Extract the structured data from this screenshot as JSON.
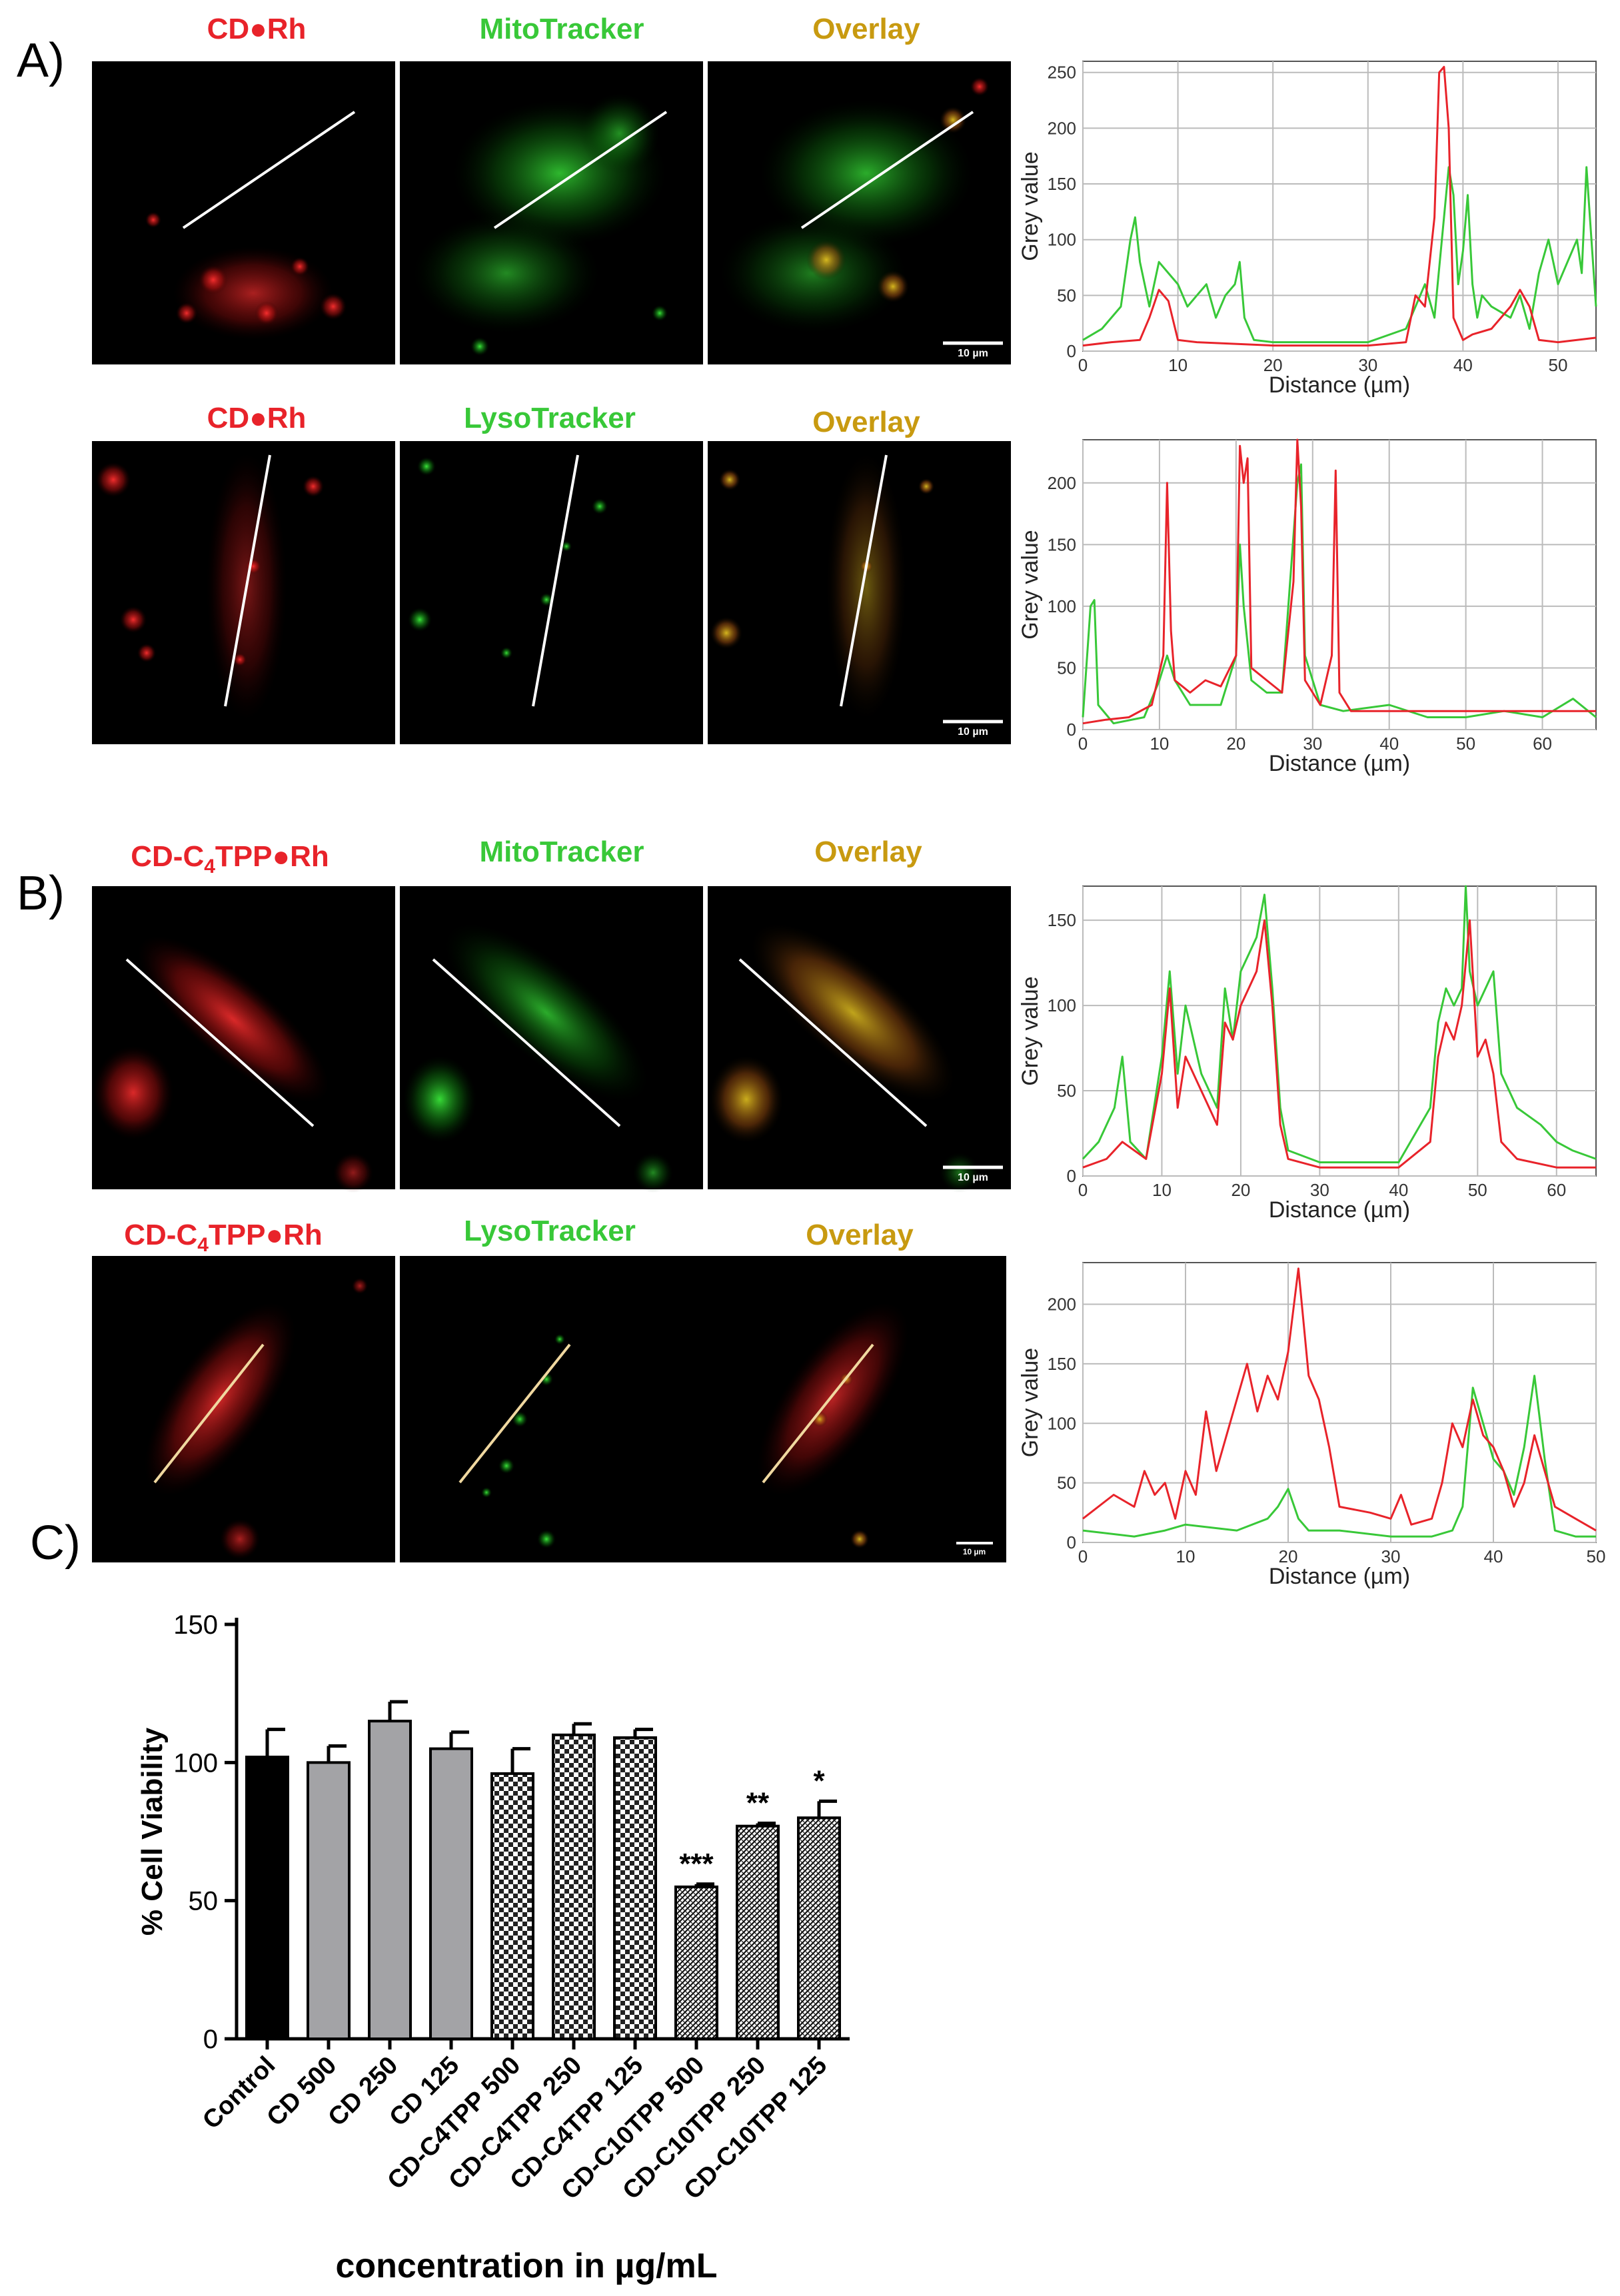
{
  "colors": {
    "red": "#e8232a",
    "green": "#38c838",
    "gold": "#c89a10",
    "black": "#000000"
  },
  "panel_labels": [
    "A)",
    "B)",
    "C)"
  ],
  "rows": [
    {
      "headers": [
        "CD●Rh",
        "MitoTracker",
        "Overlay"
      ],
      "scale_bar": "10 µm"
    },
    {
      "headers": [
        "CD●Rh",
        "LysoTracker",
        "Overlay"
      ],
      "scale_bar": "10 µm"
    },
    {
      "headers": [
        "CD-C4TPP●Rh",
        "MitoTracker",
        "Overlay"
      ],
      "scale_bar": "10 µm"
    },
    {
      "headers": [
        "CD-C4TPP●Rh",
        "LysoTracker",
        "Overlay"
      ],
      "scale_bar": "10 µm"
    }
  ],
  "chart_data": [
    {
      "type": "line",
      "title": "",
      "xlabel": "Distance (µm)",
      "ylabel": "Grey value",
      "xlim": [
        0,
        54
      ],
      "ylim": [
        0,
        260
      ],
      "grid": true,
      "xticks": [
        0,
        10,
        20,
        30,
        40,
        50
      ],
      "yticks": [
        0,
        50,
        100,
        150,
        200,
        250
      ],
      "series": [
        {
          "name": "red",
          "x": [
            0,
            3,
            6,
            7,
            8,
            9,
            10,
            12,
            20,
            30,
            34,
            35,
            36,
            37,
            37.5,
            38,
            38.5,
            39,
            40,
            41,
            43,
            45,
            46,
            47,
            48,
            50,
            52,
            54
          ],
          "y": [
            5,
            8,
            10,
            30,
            55,
            45,
            10,
            8,
            5,
            5,
            8,
            50,
            40,
            120,
            250,
            255,
            200,
            30,
            10,
            15,
            20,
            40,
            55,
            40,
            10,
            8,
            10,
            12
          ]
        },
        {
          "name": "green",
          "x": [
            0,
            2,
            4,
            5,
            5.5,
            6,
            7,
            8,
            9,
            10,
            11,
            12,
            13,
            14,
            15,
            16,
            16.5,
            17,
            18,
            20,
            25,
            30,
            34,
            35,
            36,
            37,
            38,
            38.5,
            39,
            39.5,
            40,
            40.5,
            41,
            41.5,
            42,
            43,
            45,
            46,
            47,
            48,
            49,
            50,
            51,
            52,
            52.5,
            53,
            54
          ],
          "y": [
            10,
            20,
            40,
            100,
            120,
            80,
            40,
            80,
            70,
            60,
            40,
            50,
            60,
            30,
            50,
            60,
            80,
            30,
            10,
            8,
            8,
            8,
            20,
            40,
            60,
            30,
            120,
            165,
            140,
            60,
            90,
            140,
            60,
            30,
            50,
            40,
            30,
            50,
            20,
            70,
            100,
            60,
            80,
            100,
            70,
            165,
            40
          ]
        }
      ]
    },
    {
      "type": "line",
      "title": "",
      "xlabel": "Distance (µm)",
      "ylabel": "Grey value",
      "xlim": [
        0,
        67
      ],
      "ylim": [
        0,
        235
      ],
      "grid": true,
      "xticks": [
        0,
        10,
        20,
        30,
        40,
        50,
        60
      ],
      "yticks": [
        0,
        50,
        100,
        150,
        200
      ],
      "series": [
        {
          "name": "red",
          "x": [
            0,
            3,
            6,
            9,
            10.5,
            11,
            11.5,
            12,
            14,
            16,
            18,
            20,
            20.5,
            21,
            21.5,
            22,
            24,
            26,
            27.5,
            28,
            28.5,
            29,
            31,
            32.5,
            33,
            33.5,
            35,
            40,
            50,
            60,
            67
          ],
          "y": [
            5,
            8,
            10,
            20,
            60,
            200,
            80,
            40,
            30,
            40,
            35,
            60,
            230,
            200,
            220,
            50,
            40,
            30,
            120,
            235,
            180,
            40,
            20,
            60,
            210,
            30,
            15,
            15,
            15,
            15,
            15
          ]
        },
        {
          "name": "green",
          "x": [
            0,
            1,
            1.5,
            2,
            4,
            8,
            10,
            11,
            12,
            14,
            18,
            20,
            20.5,
            21,
            22,
            24,
            26,
            28,
            28.5,
            29,
            31,
            34,
            40,
            45,
            50,
            55,
            60,
            64,
            67
          ],
          "y": [
            10,
            100,
            105,
            20,
            5,
            10,
            40,
            60,
            40,
            20,
            20,
            60,
            150,
            100,
            40,
            30,
            30,
            200,
            215,
            60,
            20,
            15,
            20,
            10,
            10,
            15,
            10,
            25,
            10
          ]
        }
      ]
    },
    {
      "type": "line",
      "title": "",
      "xlabel": "Distance (µm)",
      "ylabel": "Grey value",
      "xlim": [
        0,
        65
      ],
      "ylim": [
        0,
        170
      ],
      "grid": true,
      "xticks": [
        0,
        10,
        20,
        30,
        40,
        50,
        60
      ],
      "yticks": [
        0,
        50,
        100,
        150
      ],
      "series": [
        {
          "name": "red",
          "x": [
            0,
            3,
            5,
            8,
            10,
            11,
            12,
            13,
            15,
            17,
            18,
            19,
            20,
            21,
            22,
            23,
            24,
            25,
            26,
            30,
            40,
            44,
            45,
            46,
            47,
            48,
            49,
            50,
            51,
            52,
            53,
            55,
            60,
            65
          ],
          "y": [
            5,
            10,
            20,
            10,
            60,
            110,
            40,
            70,
            50,
            30,
            90,
            80,
            100,
            110,
            120,
            150,
            100,
            30,
            10,
            5,
            5,
            20,
            70,
            90,
            80,
            100,
            150,
            70,
            80,
            60,
            20,
            10,
            5,
            5
          ]
        },
        {
          "name": "green",
          "x": [
            0,
            2,
            4,
            5,
            6,
            8,
            10,
            11,
            12,
            13,
            15,
            17,
            18,
            19,
            20,
            21,
            22,
            23,
            24,
            25,
            26,
            30,
            40,
            44,
            45,
            46,
            47,
            48,
            48.5,
            49,
            50,
            51,
            52,
            53,
            55,
            58,
            60,
            62,
            65
          ],
          "y": [
            10,
            20,
            40,
            70,
            20,
            10,
            70,
            120,
            60,
            100,
            60,
            40,
            110,
            80,
            120,
            130,
            140,
            165,
            110,
            40,
            15,
            8,
            8,
            40,
            90,
            110,
            100,
            110,
            170,
            120,
            100,
            110,
            120,
            60,
            40,
            30,
            20,
            15,
            10
          ]
        }
      ]
    },
    {
      "type": "line",
      "title": "",
      "xlabel": "Distance (µm)",
      "ylabel": "Grey value",
      "xlim": [
        0,
        50
      ],
      "ylim": [
        0,
        235
      ],
      "grid": true,
      "xticks": [
        0,
        10,
        20,
        30,
        40,
        50
      ],
      "yticks": [
        0,
        50,
        100,
        150,
        200
      ],
      "series": [
        {
          "name": "red",
          "x": [
            0,
            3,
            5,
            6,
            7,
            8,
            9,
            10,
            11,
            12,
            13,
            14,
            15,
            16,
            17,
            18,
            19,
            20,
            21,
            22,
            23,
            24,
            25,
            28,
            30,
            31,
            32,
            34,
            35,
            36,
            37,
            38,
            39,
            40,
            41,
            42,
            43,
            44,
            45,
            46,
            48,
            50
          ],
          "y": [
            20,
            40,
            30,
            60,
            40,
            50,
            20,
            60,
            40,
            110,
            60,
            90,
            120,
            150,
            110,
            140,
            120,
            160,
            230,
            140,
            120,
            80,
            30,
            25,
            20,
            40,
            15,
            20,
            50,
            100,
            80,
            120,
            90,
            80,
            60,
            30,
            50,
            90,
            60,
            30,
            20,
            10
          ]
        },
        {
          "name": "green",
          "x": [
            0,
            5,
            8,
            10,
            15,
            18,
            19,
            20,
            21,
            22,
            25,
            30,
            34,
            36,
            37,
            38,
            39,
            40,
            41,
            42,
            43,
            44,
            45,
            46,
            48,
            50
          ],
          "y": [
            10,
            5,
            10,
            15,
            10,
            20,
            30,
            45,
            20,
            10,
            10,
            5,
            5,
            10,
            30,
            130,
            100,
            70,
            60,
            40,
            80,
            140,
            70,
            10,
            5,
            5
          ]
        }
      ]
    },
    {
      "type": "bar",
      "title": "",
      "xlabel": "concentration in µg/mL",
      "ylabel": "% Cell Viability",
      "ylim": [
        0,
        150
      ],
      "yticks": [
        0,
        50,
        100,
        150
      ],
      "categories": [
        "Control",
        "CD 500",
        "CD 250",
        "CD 125",
        "CD-C4TPP 500",
        "CD-C4TPP 250",
        "CD-C4TPP 125",
        "CD-C10TPP 500",
        "CD-C10TPP 250",
        "CD-C10TPP 125"
      ],
      "values": [
        102,
        100,
        115,
        105,
        96,
        110,
        109,
        55,
        77,
        80
      ],
      "errors": [
        10,
        6,
        7,
        6,
        9,
        4,
        3,
        1,
        1,
        6
      ],
      "significance": [
        "",
        "",
        "",
        "",
        "",
        "",
        "",
        "***",
        "**",
        "*"
      ],
      "fills": [
        "black",
        "grey",
        "grey",
        "grey",
        "checker",
        "checker",
        "checker",
        "hatch",
        "hatch",
        "hatch"
      ]
    }
  ]
}
